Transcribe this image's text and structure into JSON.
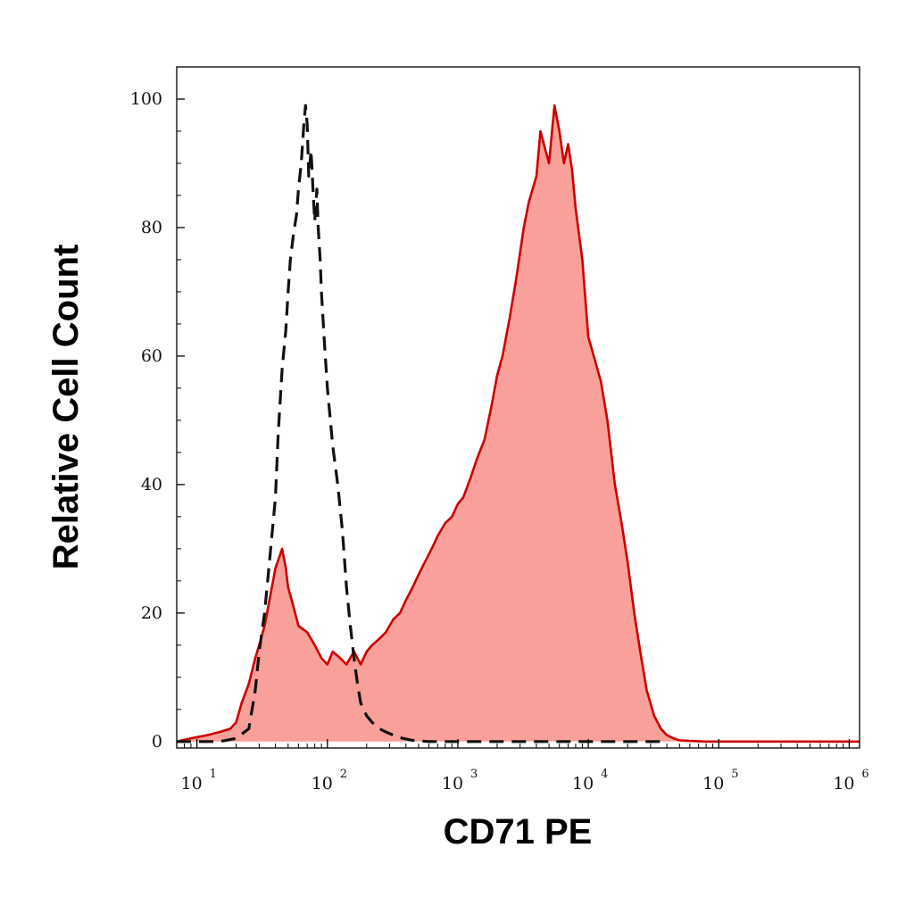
{
  "chart_data": {
    "type": "area",
    "xlabel": "CD71 PE",
    "ylabel": "Relative Cell Count",
    "x_scale": "log",
    "xlim": [
      7,
      1200000
    ],
    "ylim": [
      -1,
      105
    ],
    "x_ticks": [
      {
        "value": 10,
        "base": "10",
        "exp": "1"
      },
      {
        "value": 100,
        "base": "10",
        "exp": "2"
      },
      {
        "value": 1000,
        "base": "10",
        "exp": "3"
      },
      {
        "value": 10000,
        "base": "10",
        "exp": "4"
      },
      {
        "value": 100000,
        "base": "10",
        "exp": "5"
      },
      {
        "value": 1000000,
        "base": "10",
        "exp": "6"
      }
    ],
    "y_ticks": [
      {
        "value": 0,
        "label": "0"
      },
      {
        "value": 20,
        "label": "20"
      },
      {
        "value": 40,
        "label": "40"
      },
      {
        "value": 60,
        "label": "60"
      },
      {
        "value": 80,
        "label": "80"
      },
      {
        "value": 100,
        "label": "100"
      }
    ],
    "grid": false,
    "series": [
      {
        "style": "filled",
        "color": "#cc0000",
        "fill_color": "#f9a09a",
        "x": [
          7,
          9,
          12,
          15,
          18,
          20,
          22,
          25,
          28,
          30,
          33,
          36,
          40,
          45,
          48,
          50,
          55,
          60,
          70,
          80,
          90,
          100,
          110,
          125,
          140,
          160,
          180,
          200,
          220,
          250,
          280,
          320,
          360,
          400,
          450,
          500,
          560,
          630,
          700,
          800,
          900,
          1000,
          1100,
          1250,
          1400,
          1600,
          1800,
          2000,
          2200,
          2500,
          2800,
          3200,
          3500,
          4000,
          4300,
          4700,
          5000,
          5500,
          6000,
          6500,
          7000,
          7500,
          8000,
          9000,
          10000,
          11000,
          12500,
          14000,
          16000,
          18000,
          20000,
          22500,
          25000,
          28000,
          32000,
          36000,
          40000,
          45000,
          50000,
          60000,
          80000,
          100000,
          200000,
          500000,
          1000000,
          1200000
        ],
        "values": [
          0,
          0.5,
          1,
          1.5,
          2,
          3,
          6,
          9,
          13,
          15,
          18,
          22,
          27,
          30,
          27,
          24,
          21,
          18,
          17,
          15,
          13,
          12,
          14,
          13,
          12,
          14,
          12,
          14,
          15,
          16,
          17,
          19,
          20,
          22,
          24,
          26,
          28,
          30,
          32,
          34,
          35,
          37,
          38,
          41,
          44,
          47,
          52,
          57,
          60,
          66,
          72,
          80,
          84,
          88,
          95,
          92,
          90,
          99,
          95,
          90,
          93,
          89,
          83,
          75,
          63,
          60,
          56,
          50,
          40,
          34,
          28,
          20,
          14,
          8,
          4,
          2,
          1,
          0.5,
          0.2,
          0.1,
          0,
          0,
          0,
          0,
          0,
          0
        ]
      },
      {
        "style": "dashed",
        "color": "#111111",
        "x": [
          7,
          15,
          20,
          25,
          28,
          30,
          33,
          36,
          40,
          42,
          45,
          48,
          50,
          52,
          55,
          58,
          60,
          63,
          66,
          68,
          70,
          72,
          75,
          78,
          80,
          83,
          85,
          88,
          90,
          95,
          100,
          110,
          120,
          130,
          140,
          150,
          160,
          170,
          180,
          200,
          220,
          250,
          280,
          320,
          360,
          400,
          450,
          500,
          600,
          700,
          1000,
          2000,
          5000,
          10000,
          20000,
          30000,
          40000
        ],
        "values": [
          0,
          0,
          0.5,
          2,
          8,
          14,
          20,
          28,
          38,
          48,
          58,
          64,
          70,
          75,
          79,
          82,
          86,
          90,
          96,
          99,
          96,
          88,
          92,
          85,
          81,
          86,
          80,
          75,
          70,
          62,
          55,
          46,
          40,
          33,
          24,
          18,
          13,
          9,
          6,
          4,
          3,
          2,
          1.5,
          1,
          0.6,
          0.4,
          0.2,
          0.1,
          0,
          0,
          0,
          0,
          0,
          0,
          0,
          0,
          0
        ]
      }
    ]
  }
}
